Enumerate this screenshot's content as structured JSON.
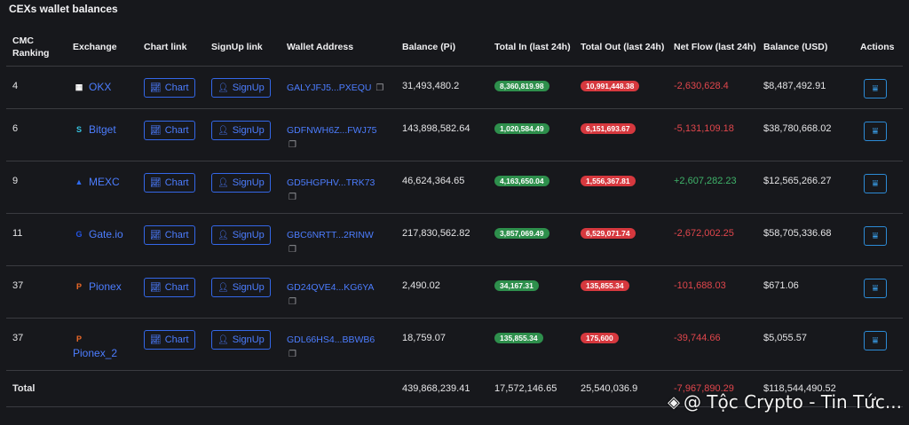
{
  "page_title": "CEXs wallet balances",
  "headers": {
    "rank": "CMC Ranking",
    "exchange": "Exchange",
    "chart": "Chart link",
    "signup": "SignUp link",
    "wallet": "Wallet Address",
    "balance": "Balance (Pi)",
    "in": "Total In (last 24h)",
    "out": "Total Out (last 24h)",
    "net": "Net Flow (last 24h)",
    "usd": "Balance (USD)",
    "actions": "Actions"
  },
  "buttons": {
    "chart": "Chart",
    "signup": "SignUp"
  },
  "rows": [
    {
      "rank": "4",
      "exchange": "OKX",
      "logo": "okx-logo",
      "logo_color": "#ffffff",
      "wallet": "GALYJFJ5...PXEQU",
      "balance": "31,493,480.2",
      "in": "8,360,819.98",
      "out": "10,991,448.38",
      "net": "-2,630,628.4",
      "net_sign": "neg",
      "usd": "$8,487,492.91"
    },
    {
      "rank": "6",
      "exchange": "Bitget",
      "logo": "bitget-logo",
      "logo_color": "#36c3e0",
      "wallet": "GDFNWH6Z...FWJ75",
      "balance": "143,898,582.64",
      "in": "1,020,584.49",
      "out": "6,151,693.67",
      "net": "-5,131,109.18",
      "net_sign": "neg",
      "usd": "$38,780,668.02"
    },
    {
      "rank": "9",
      "exchange": "MEXC",
      "logo": "mexc-logo",
      "logo_color": "#2f6bf0",
      "wallet": "GD5HGPHV...TRK73",
      "balance": "46,624,364.65",
      "in": "4,163,650.04",
      "out": "1,556,367.81",
      "net": "+2,607,282.23",
      "net_sign": "pos",
      "usd": "$12,565,266.27"
    },
    {
      "rank": "11",
      "exchange": "Gate.io",
      "logo": "gateio-logo",
      "logo_color": "#2354e6",
      "wallet": "GBC6NRTT...2RINW",
      "balance": "217,830,562.82",
      "in": "3,857,069.49",
      "out": "6,529,071.74",
      "net": "-2,672,002.25",
      "net_sign": "neg",
      "usd": "$58,705,336.68"
    },
    {
      "rank": "37",
      "exchange": "Pionex",
      "logo": "pionex-logo",
      "logo_color": "#f06a28",
      "wallet": "GD24QVE4...KG6YA",
      "balance": "2,490.02",
      "in": "34,167.31",
      "out": "135,855.34",
      "net": "-101,688.03",
      "net_sign": "neg",
      "usd": "$671.06"
    },
    {
      "rank": "37",
      "exchange": "Pionex_2",
      "logo": "pionex-logo",
      "logo_color": "#f06a28",
      "wallet": "GDL66HS4...BBWB6",
      "balance": "18,759.07",
      "in": "135,855.34",
      "out": "175,600",
      "net": "-39,744.66",
      "net_sign": "neg",
      "usd": "$5,055.57"
    }
  ],
  "totals": {
    "label": "Total",
    "balance": "439,868,239.41",
    "in": "17,572,146.65",
    "out": "25,540,036.9",
    "net": "-7,967,890.29",
    "usd": "$118,544,490.52"
  },
  "watermark": "@ Tộc Crypto - Tin Tức..."
}
